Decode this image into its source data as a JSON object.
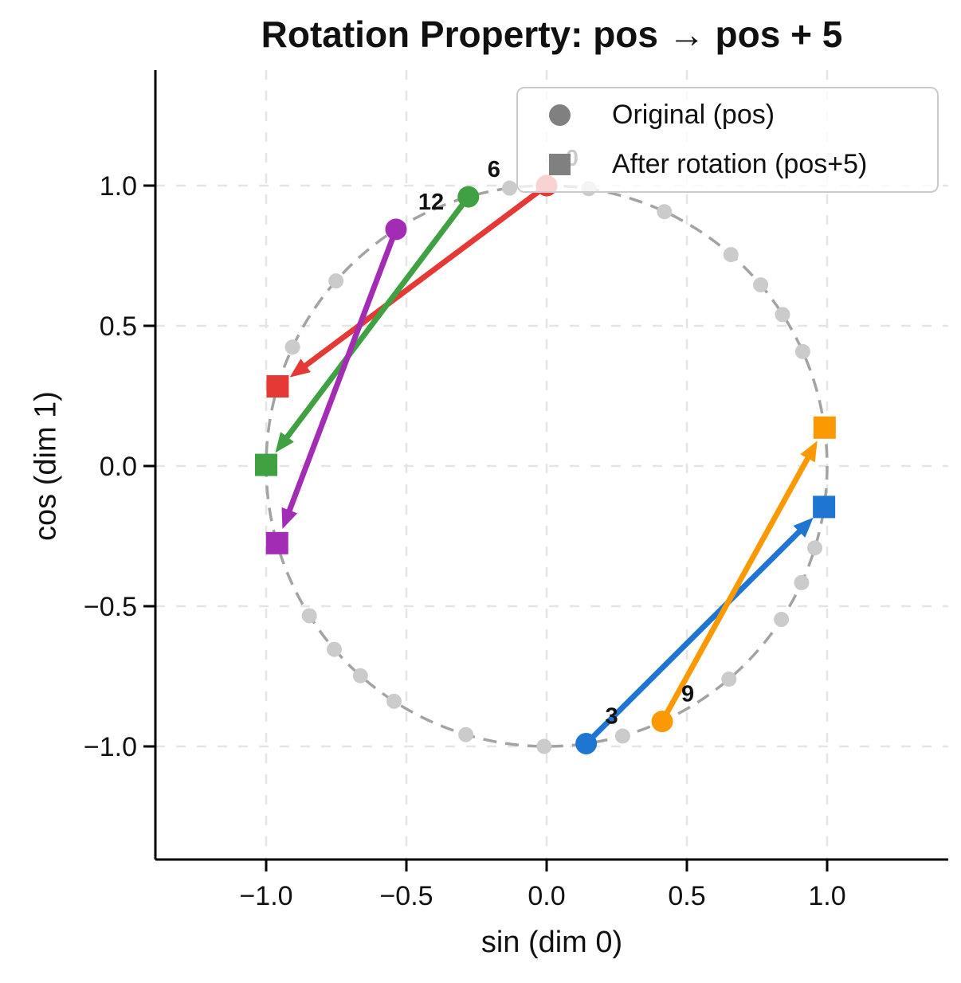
{
  "title": "Rotation Property: pos → pos + 5",
  "colors": {
    "background": "#ffffff",
    "axis": "#000000",
    "text": "#111111",
    "grid": "#e4e4e4",
    "unit_circle": "#a3a3a3",
    "position_dot": "#cbcbcb",
    "legend_marker": "#808080",
    "legend_border": "#cbcbcb"
  },
  "chart_data": {
    "type": "scatter",
    "title": "Rotation Property: pos → pos + 5",
    "xlabel": "sin (dim 0)",
    "ylabel": "cos (dim 1)",
    "xlim": [
      -1.4,
      1.43
    ],
    "ylim": [
      -1.4,
      1.41
    ],
    "grid": true,
    "grid_style": "dashed",
    "x_ticks": [
      -1.0,
      -0.5,
      0.0,
      0.5,
      1.0
    ],
    "x_tick_labels": [
      "−1.0",
      "−0.5",
      "0.0",
      "0.5",
      "1.0"
    ],
    "y_ticks": [
      -1.0,
      -0.5,
      0.0,
      0.5,
      1.0
    ],
    "y_tick_labels": [
      "−1.0",
      "−0.5",
      "0.0",
      "0.5",
      "1.0"
    ],
    "unit_circle": {
      "radius": 1.0,
      "style": "dashed"
    },
    "rotation_offset": 5,
    "n_positions": 30,
    "positions": [
      {
        "pos": 0,
        "sin": 0.0,
        "cos": 1.0
      },
      {
        "pos": 1,
        "sin": 0.841,
        "cos": 0.54
      },
      {
        "pos": 2,
        "sin": 0.909,
        "cos": -0.416
      },
      {
        "pos": 3,
        "sin": 0.141,
        "cos": -0.99
      },
      {
        "pos": 4,
        "sin": -0.757,
        "cos": -0.654
      },
      {
        "pos": 5,
        "sin": -0.959,
        "cos": 0.284
      },
      {
        "pos": 6,
        "sin": -0.279,
        "cos": 0.96
      },
      {
        "pos": 7,
        "sin": 0.657,
        "cos": 0.754
      },
      {
        "pos": 8,
        "sin": 0.989,
        "cos": -0.146
      },
      {
        "pos": 9,
        "sin": 0.412,
        "cos": -0.911
      },
      {
        "pos": 10,
        "sin": -0.544,
        "cos": -0.839
      },
      {
        "pos": 11,
        "sin": -1.0,
        "cos": 0.004
      },
      {
        "pos": 12,
        "sin": -0.537,
        "cos": 0.844
      },
      {
        "pos": 13,
        "sin": 0.42,
        "cos": 0.907
      },
      {
        "pos": 14,
        "sin": 0.991,
        "cos": 0.137
      },
      {
        "pos": 15,
        "sin": 0.65,
        "cos": -0.76
      },
      {
        "pos": 16,
        "sin": -0.288,
        "cos": -0.958
      },
      {
        "pos": 17,
        "sin": -0.961,
        "cos": -0.275
      },
      {
        "pos": 18,
        "sin": -0.751,
        "cos": 0.66
      },
      {
        "pos": 19,
        "sin": 0.15,
        "cos": 0.989
      },
      {
        "pos": 20,
        "sin": 0.913,
        "cos": 0.408
      },
      {
        "pos": 21,
        "sin": 0.837,
        "cos": -0.547
      },
      {
        "pos": 22,
        "sin": -0.009,
        "cos": -1.0
      },
      {
        "pos": 23,
        "sin": -0.846,
        "cos": -0.534
      },
      {
        "pos": 24,
        "sin": -0.906,
        "cos": 0.424
      },
      {
        "pos": 25,
        "sin": -0.132,
        "cos": 0.991
      },
      {
        "pos": 26,
        "sin": 0.763,
        "cos": 0.646
      },
      {
        "pos": 27,
        "sin": 0.956,
        "cos": -0.292
      },
      {
        "pos": 28,
        "sin": 0.271,
        "cos": -0.963
      },
      {
        "pos": 29,
        "sin": -0.664,
        "cos": -0.748
      }
    ],
    "highlighted": [
      {
        "pos": 0,
        "label": "0",
        "color": "#e53935",
        "original": [
          0.0,
          1.0
        ],
        "rotated_pos": 5,
        "rotated": [
          -0.959,
          0.284
        ],
        "label_behind_legend": true
      },
      {
        "pos": 3,
        "label": "3",
        "color": "#1e76d2",
        "original": [
          0.141,
          -0.99
        ],
        "rotated_pos": 8,
        "rotated": [
          0.989,
          -0.146
        ],
        "label_behind_legend": false
      },
      {
        "pos": 6,
        "label": "6",
        "color": "#3fa142",
        "original": [
          -0.279,
          0.96
        ],
        "rotated_pos": 11,
        "rotated": [
          -1.0,
          0.004
        ],
        "label_behind_legend": false
      },
      {
        "pos": 9,
        "label": "9",
        "color": "#fb9902",
        "original": [
          0.412,
          -0.911
        ],
        "rotated_pos": 14,
        "rotated": [
          0.991,
          0.137
        ],
        "label_behind_legend": false
      },
      {
        "pos": 12,
        "label": "12",
        "color": "#a32cb5",
        "original": [
          -0.537,
          0.844
        ],
        "rotated_pos": 17,
        "rotated": [
          -0.961,
          -0.275
        ],
        "label_behind_legend": false
      }
    ],
    "legend": {
      "position": "upper right",
      "items": [
        {
          "marker": "circle",
          "label": "Original (pos)"
        },
        {
          "marker": "square",
          "label": "After rotation (pos+5)"
        }
      ]
    }
  }
}
